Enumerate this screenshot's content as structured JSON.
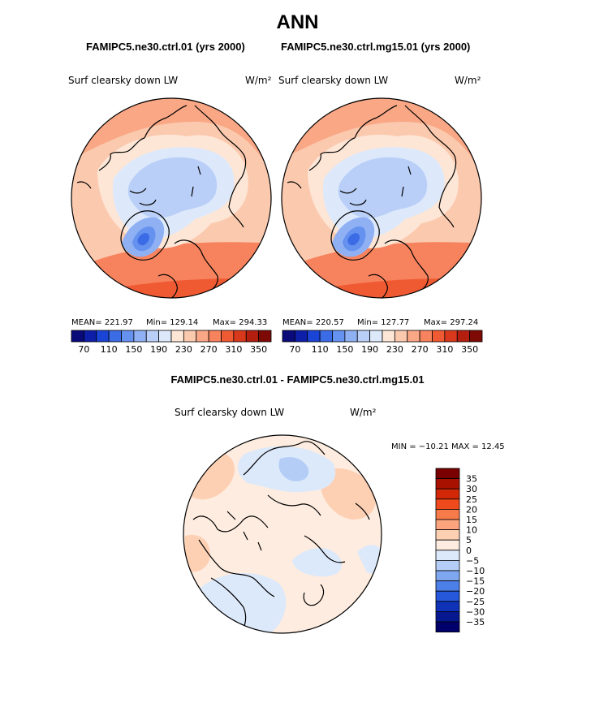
{
  "main_title": "ANN",
  "case_titles": {
    "left": "FAMIPC5.ne30.ctrl.01 (yrs 2000)",
    "right": "FAMIPC5.ne30.ctrl.mg15.01 (yrs 2000)",
    "diff": "FAMIPC5.ne30.ctrl.01 - FAMIPC5.ne30.ctrl.mg15.01"
  },
  "panels": {
    "left": {
      "field": "Surf clearsky down LW",
      "units": "W/m²",
      "stats": {
        "mean": "MEAN= 221.97",
        "min": "Min= 129.14",
        "max": "Max= 294.33"
      }
    },
    "right": {
      "field": "Surf clearsky down LW",
      "units": "W/m²",
      "stats": {
        "mean": "MEAN= 220.57",
        "min": "Min= 127.77",
        "max": "Max= 297.24"
      }
    },
    "diff": {
      "field": "Surf clearsky down LW",
      "units": "W/m²",
      "minmax": "MIN = −10.21  MAX =  12.45"
    }
  },
  "chart_data": [
    {
      "type": "heatmap",
      "title": "FAMIPC5.ne30.ctrl.01 (yrs 2000)",
      "variable": "Surf clearsky down LW",
      "units": "W/m2",
      "projection": "north polar stereographic",
      "mean": 221.97,
      "min": 129.14,
      "max": 294.33,
      "colorbar_ticks": [
        70,
        110,
        150,
        190,
        230,
        270,
        310,
        350
      ]
    },
    {
      "type": "heatmap",
      "title": "FAMIPC5.ne30.ctrl.mg15.01 (yrs 2000)",
      "variable": "Surf clearsky down LW",
      "units": "W/m2",
      "projection": "north polar stereographic",
      "mean": 220.57,
      "min": 127.77,
      "max": 297.24,
      "colorbar_ticks": [
        70,
        110,
        150,
        190,
        230,
        270,
        310,
        350
      ]
    },
    {
      "type": "heatmap",
      "title": "FAMIPC5.ne30.ctrl.01 - FAMIPC5.ne30.ctrl.mg15.01",
      "variable": "Surf clearsky down LW",
      "units": "W/m2",
      "projection": "north polar stereographic",
      "min": -10.21,
      "max": 12.45,
      "colorbar_ticks": [
        35,
        30,
        25,
        20,
        15,
        10,
        5,
        0,
        -5,
        -10,
        -15,
        -20,
        -25,
        -30,
        -35
      ]
    }
  ],
  "colorbar_labels_abs": [
    "70",
    "110",
    "150",
    "190",
    "230",
    "270",
    "310",
    "350"
  ],
  "colorbar_labels_diff": [
    "35",
    "30",
    "25",
    "20",
    "15",
    "10",
    "5",
    "0",
    "−5",
    "−10",
    "−15",
    "−20",
    "−25",
    "−30",
    "−35"
  ],
  "colors": {
    "abs_scale": [
      "#0a0a7a",
      "#0d1fa8",
      "#1a44d6",
      "#3c6be6",
      "#6591ef",
      "#8fb1f4",
      "#b9cff7",
      "#dde9fb",
      "#fde6d6",
      "#fbc9ae",
      "#f9a785",
      "#f7835e",
      "#f05a33",
      "#d8391c",
      "#b41e0f",
      "#7e0a05"
    ],
    "diff_scale": [
      "#7a0000",
      "#a81000",
      "#d22808",
      "#ee4a1c",
      "#f77a4a",
      "#fba47d",
      "#fdd0b3",
      "#fdecdf",
      "#dce9fb",
      "#b4cdf6",
      "#7ea7f0",
      "#4d7fe8",
      "#2658dc",
      "#0f32b8",
      "#051890",
      "#00006a"
    ]
  }
}
